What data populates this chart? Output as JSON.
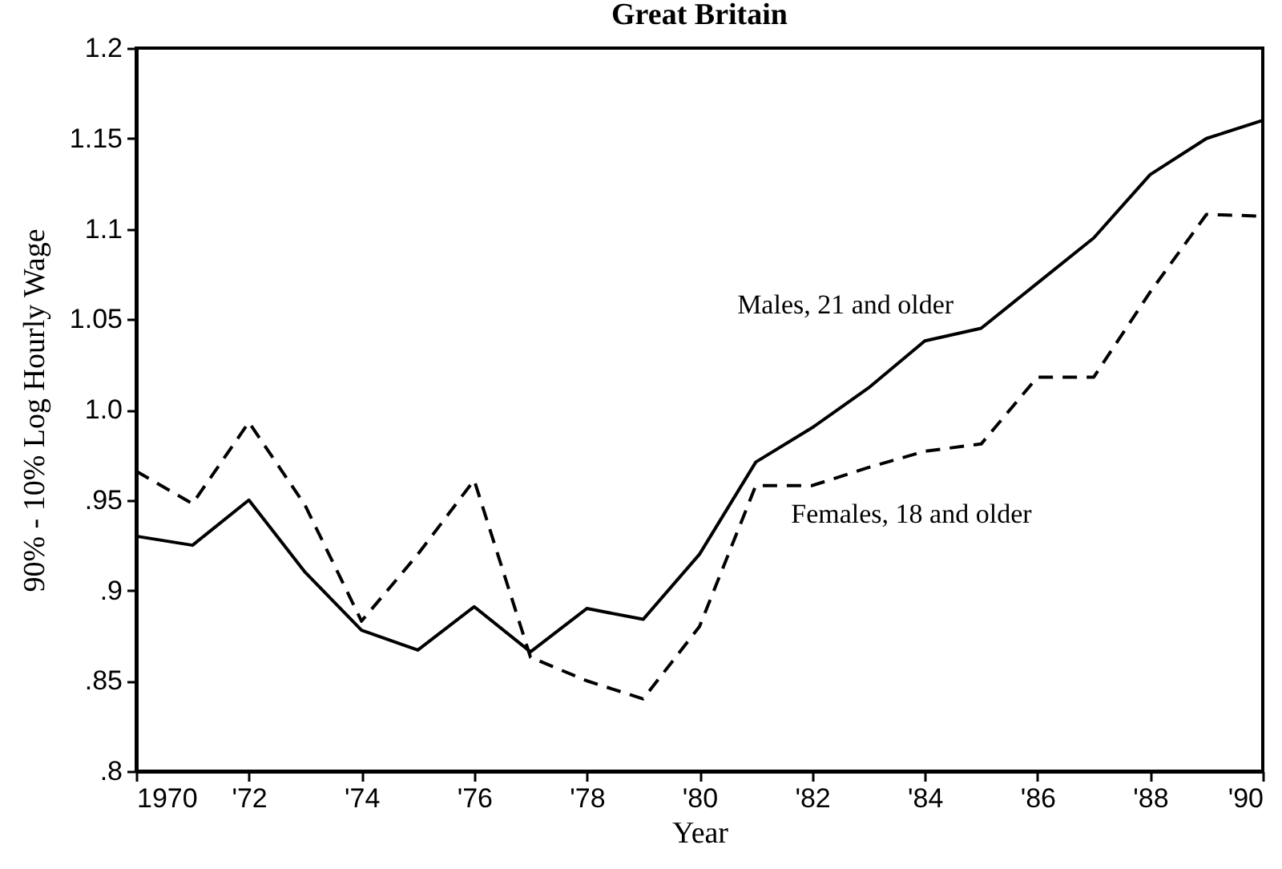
{
  "chart_data": {
    "type": "line",
    "title": "Great Britain",
    "xlabel": "Year",
    "ylabel": "90% - 10% Log Hourly Wage",
    "x": [
      1970,
      1971,
      1972,
      1973,
      1974,
      1975,
      1976,
      1977,
      1978,
      1979,
      1980,
      1981,
      1982,
      1983,
      1984,
      1985,
      1986,
      1987,
      1988,
      1989,
      1990
    ],
    "series": [
      {
        "name": "Males, 21 and older",
        "color": "#000000",
        "line_style": "solid",
        "values": [
          0.93,
          0.925,
          0.95,
          0.91,
          0.878,
          0.867,
          0.891,
          0.866,
          0.89,
          0.884,
          0.92,
          0.971,
          0.99,
          1.012,
          1.038,
          1.045,
          1.07,
          1.095,
          1.13,
          1.15,
          1.16
        ]
      },
      {
        "name": "Females, 18 and older",
        "color": "#000000",
        "line_style": "dashed",
        "values": [
          0.966,
          0.948,
          0.993,
          0.947,
          0.883,
          0.92,
          0.961,
          0.863,
          0.85,
          0.84,
          0.88,
          0.958,
          0.958,
          0.968,
          0.977,
          0.981,
          1.018,
          1.018,
          1.065,
          1.108,
          1.107
        ]
      }
    ],
    "xlim": [
      1970,
      1990
    ],
    "xticks": [
      1970,
      {
        "value": 1972,
        "label": "'72"
      },
      {
        "value": 1974,
        "label": "'74"
      },
      {
        "value": 1976,
        "label": "'76"
      },
      {
        "value": 1978,
        "label": "'78"
      },
      {
        "value": 1980,
        "label": "'80"
      },
      {
        "value": 1982,
        "label": "'82"
      },
      {
        "value": 1984,
        "label": "'84"
      },
      {
        "value": 1986,
        "label": "'86"
      },
      {
        "value": 1988,
        "label": "'88"
      },
      {
        "value": 1990,
        "label": "'90"
      }
    ],
    "ylim": [
      0.8,
      1.2
    ],
    "yticks": [
      {
        "value": 0.8,
        "label": ".8"
      },
      {
        "value": 0.85,
        "label": ".85"
      },
      {
        "value": 0.9,
        "label": ".9"
      },
      {
        "value": 0.95,
        "label": ".95"
      },
      {
        "value": 1.0,
        "label": "1.0"
      },
      1.05,
      1.1,
      1.15,
      1.2
    ],
    "tick_labels": "xy"
  }
}
